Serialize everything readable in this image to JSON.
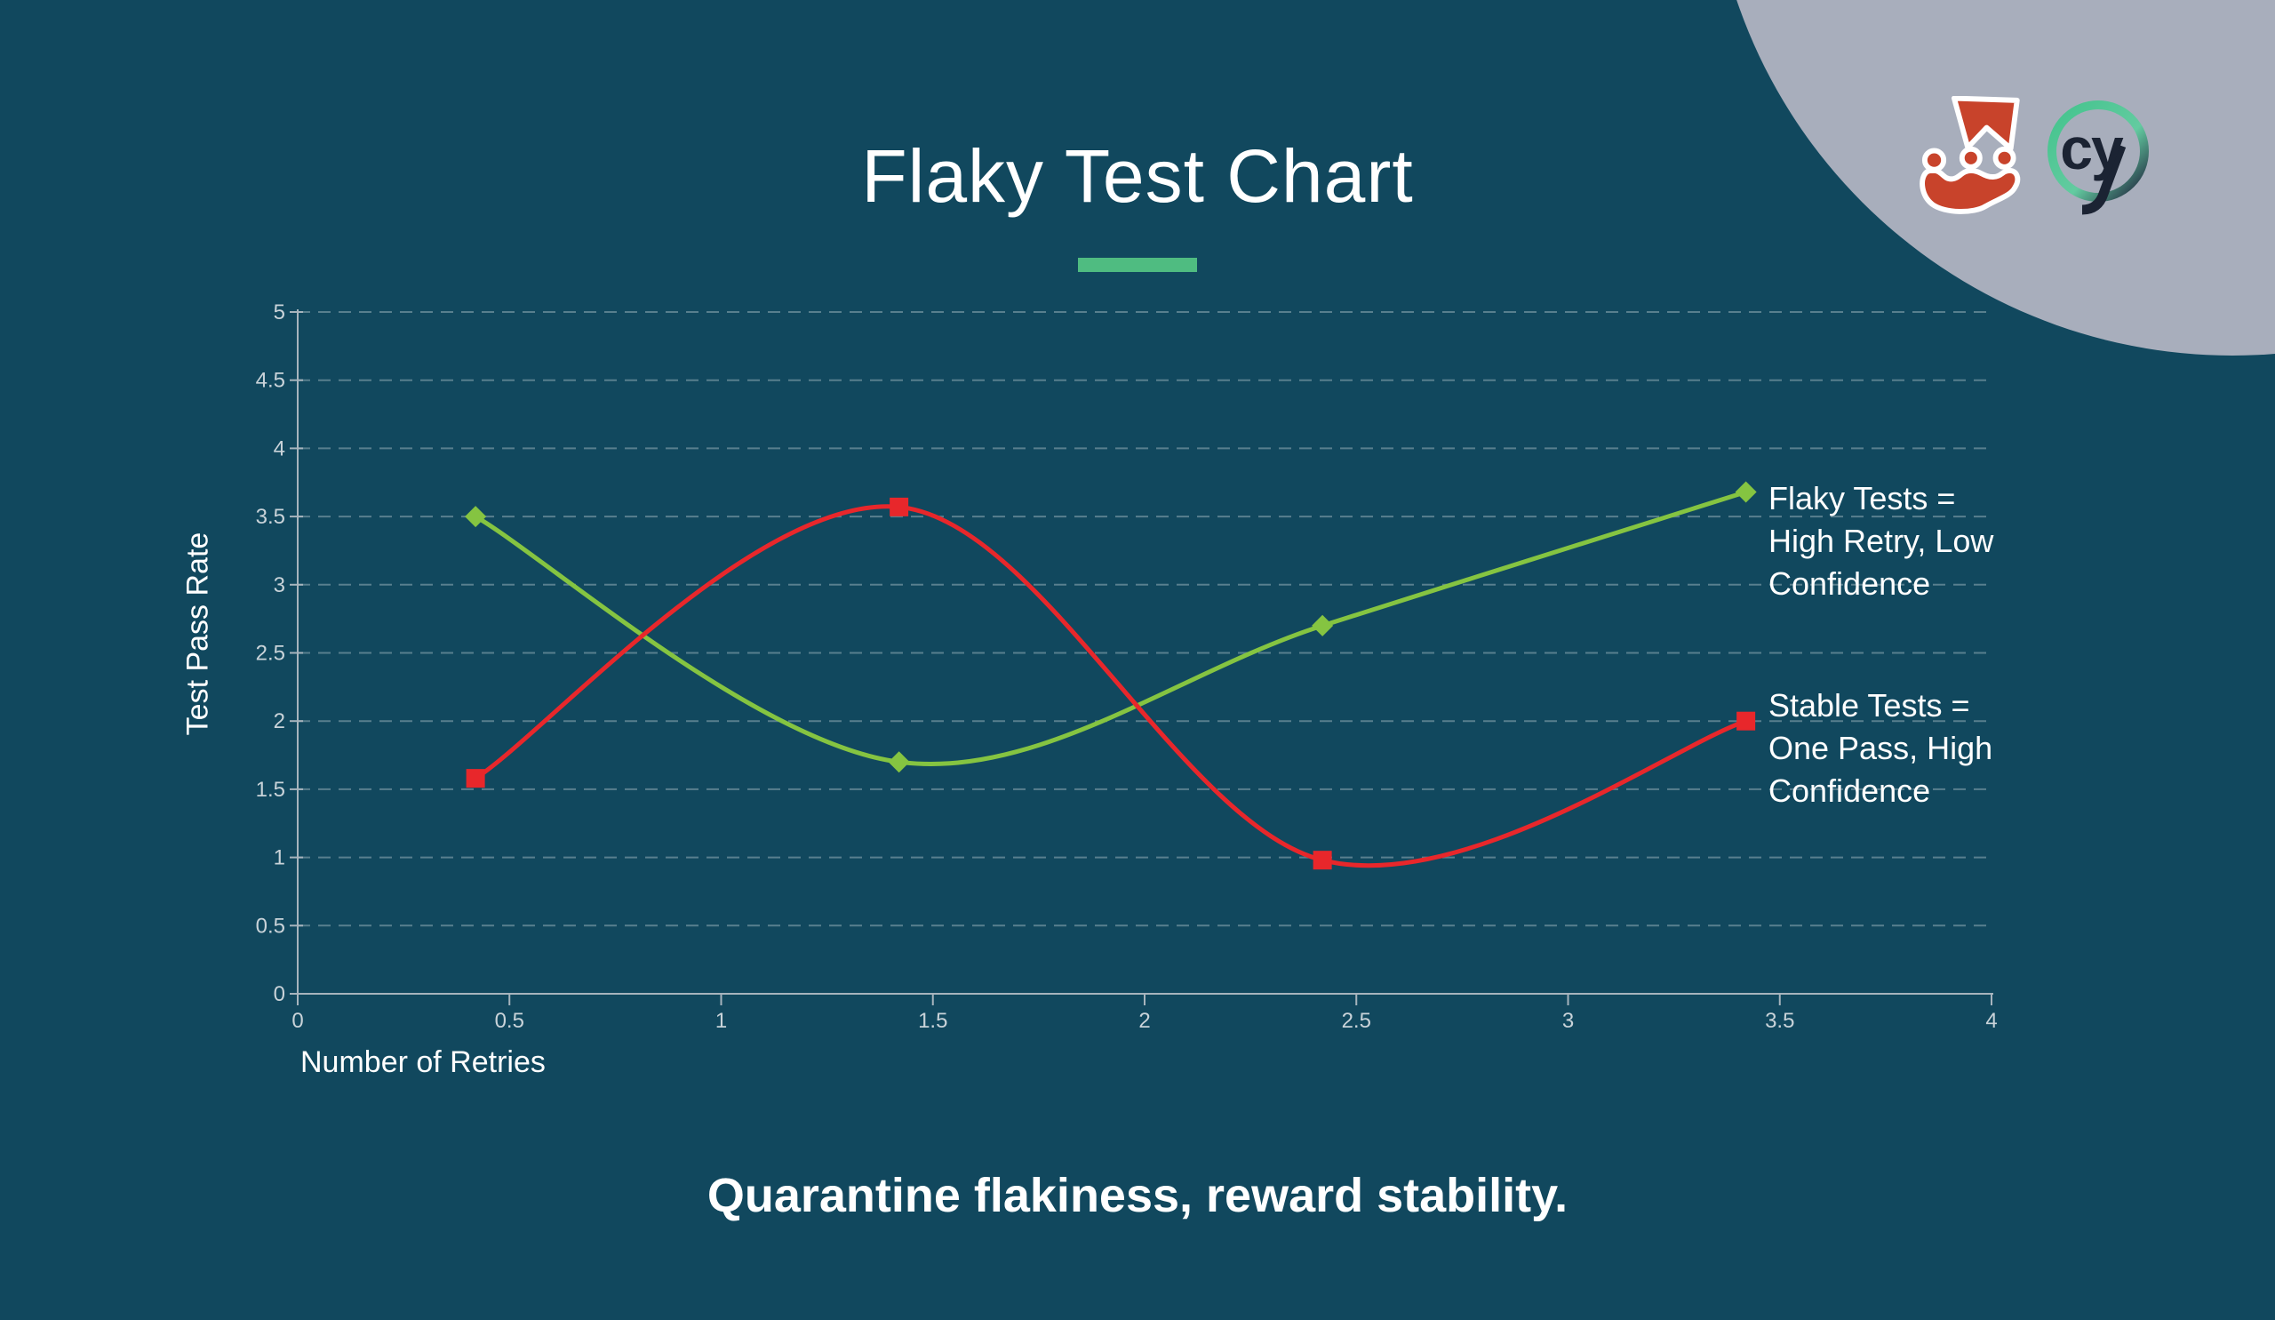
{
  "title": "Flaky Test Chart",
  "tagline": "Quarantine flakiness, reward stability.",
  "colors": {
    "background": "#11485e",
    "corner_circle": "#a8aebc",
    "accent_bar": "#4fbc81",
    "axis": "#a7b4bd",
    "grid": "rgba(255,255,255,0.30)",
    "tick_label": "#c9d3d9",
    "text": "#ffffff",
    "flaky_line": "#85c441",
    "stable_line": "#e8272b",
    "jest_red": "#c8432b",
    "cypress_navy": "#1b2333",
    "cypress_green": "#45c48e"
  },
  "logos": {
    "jest": "jest-logo",
    "cypress": "cypress-logo"
  },
  "chart_data": {
    "type": "line",
    "x": [
      0.42,
      1.42,
      2.42,
      3.42
    ],
    "series": [
      {
        "name": "Flaky Tests",
        "values": [
          3.5,
          1.7,
          2.7,
          3.68
        ],
        "color": "#85c441",
        "marker": "diamond"
      },
      {
        "name": "Stable Tests",
        "values": [
          1.58,
          3.57,
          0.98,
          2.0
        ],
        "color": "#e8272b",
        "marker": "square"
      }
    ],
    "xlabel": "Number of Retries",
    "ylabel": "Test Pass Rate",
    "xlim": [
      0,
      4
    ],
    "ylim": [
      0,
      5
    ],
    "x_ticks": [
      "0",
      "0.5",
      "1",
      "1.5",
      "2",
      "2.5",
      "3",
      "3.5",
      "4"
    ],
    "y_ticks": [
      "0",
      "0.5",
      "1",
      "1.5",
      "2",
      "2.5",
      "3",
      "3.5",
      "4",
      "4.5",
      "5"
    ],
    "grid": "horizontal-dashed",
    "smooth": true,
    "legend": "none"
  },
  "annotations": {
    "flaky": {
      "lines": [
        "Flaky Tests =",
        "High Retry, Low",
        "Confidence"
      ]
    },
    "stable": {
      "lines": [
        "Stable Tests =",
        "One Pass, High",
        "Confidence"
      ]
    }
  }
}
